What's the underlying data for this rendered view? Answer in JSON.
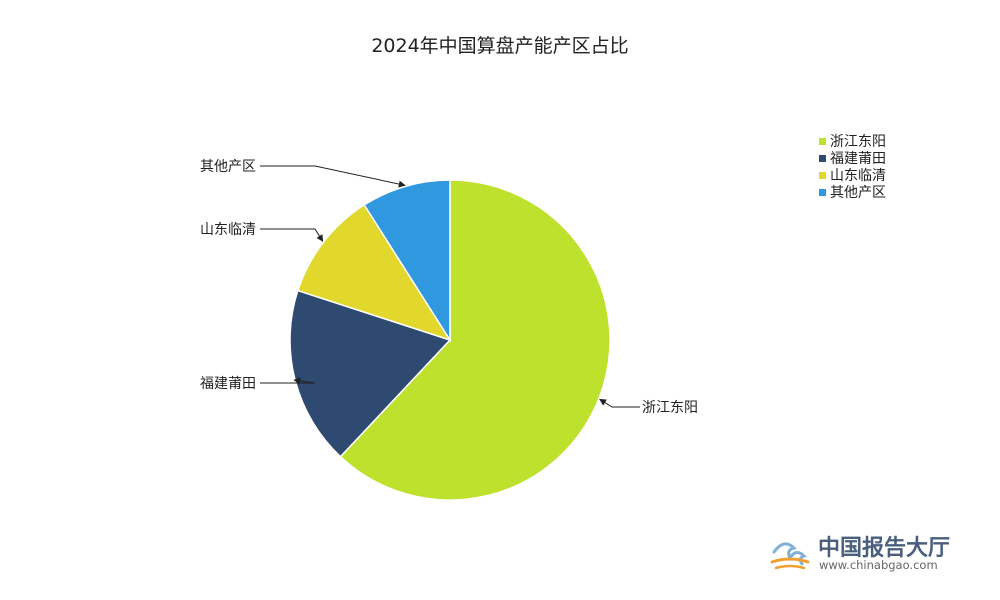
{
  "chart_data": {
    "type": "pie",
    "title": "2024年中国算盘产能产区占比",
    "slices": [
      {
        "name": "浙江东阳",
        "value": 62,
        "color": "#bde12d"
      },
      {
        "name": "福建莆田",
        "value": 18,
        "color": "#2e4a70"
      },
      {
        "name": "山东临清",
        "value": 11,
        "color": "#e1d72d"
      },
      {
        "name": "其他产区",
        "value": 9,
        "color": "#2f98de"
      }
    ],
    "legend": {
      "position": "top-right"
    }
  },
  "watermark": {
    "logo_icon": "chinabgao-logo-icon",
    "name": "中国报告大厅",
    "url": "www.chinabgao.com"
  }
}
